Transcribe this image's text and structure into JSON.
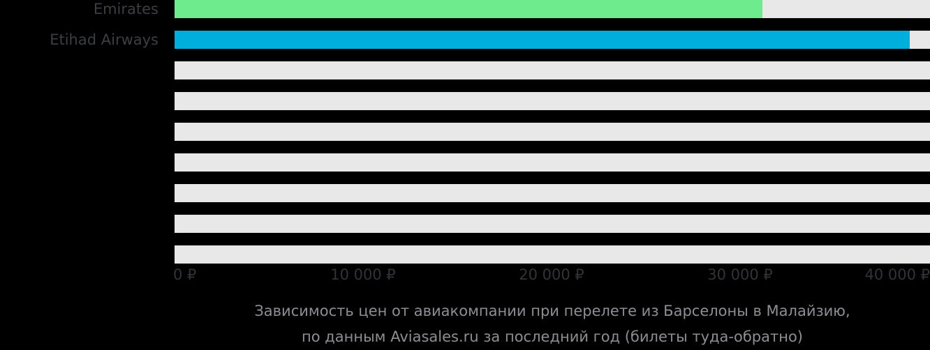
{
  "chart": {
    "background_color": "#000000",
    "track_color": "#e8e8e8",
    "row_label_color": "#3c3e44",
    "axis_label_color": "#313338",
    "caption_color": "#8c8e93",
    "rows": [
      {
        "label": "Emirates",
        "value": 31200,
        "color": "#6deb8d"
      },
      {
        "label": "Etihad Airways",
        "value": 39000,
        "color": "#00aedd"
      },
      {
        "label": "",
        "value": null,
        "color": null
      },
      {
        "label": "",
        "value": null,
        "color": null
      },
      {
        "label": "",
        "value": null,
        "color": null
      },
      {
        "label": "",
        "value": null,
        "color": null
      },
      {
        "label": "",
        "value": null,
        "color": null
      },
      {
        "label": "",
        "value": null,
        "color": null
      },
      {
        "label": "",
        "value": null,
        "color": null
      }
    ],
    "axis_ticks": [
      {
        "value": 0,
        "label": "0 ₽",
        "align": "start"
      },
      {
        "value": 10000,
        "label": "10 000 ₽",
        "align": "center"
      },
      {
        "value": 20000,
        "label": "20 000 ₽",
        "align": "center"
      },
      {
        "value": 30000,
        "label": "30 000 ₽",
        "align": "center"
      },
      {
        "value": 40000,
        "label": "40 000 ₽",
        "align": "end"
      }
    ],
    "caption": {
      "line1": "Зависимость цен от авиакомпании при перелете из Барселоны в Малайзию,",
      "line2": "по данным Aviasales.ru за последний год (билеты туда-обратно)"
    }
  },
  "chart_data": {
    "type": "bar",
    "orientation": "horizontal",
    "categories": [
      "Emirates",
      "Etihad Airways",
      "",
      "",
      "",
      "",
      "",
      "",
      ""
    ],
    "values": [
      31200,
      39000,
      null,
      null,
      null,
      null,
      null,
      null,
      null
    ],
    "series_colors": [
      "#6deb8d",
      "#00aedd"
    ],
    "title": "Зависимость цен от авиакомпании при перелете из Барселоны в Малайзию, по данным Aviasales.ru за последний год (билеты туда-обратно)",
    "xlabel": "",
    "ylabel": "",
    "xlim": [
      0,
      40000
    ],
    "x_tick_labels": [
      "0 ₽",
      "10 000 ₽",
      "20 000 ₽",
      "30 000 ₽",
      "40 000 ₽"
    ],
    "grid": false,
    "legend": false
  }
}
